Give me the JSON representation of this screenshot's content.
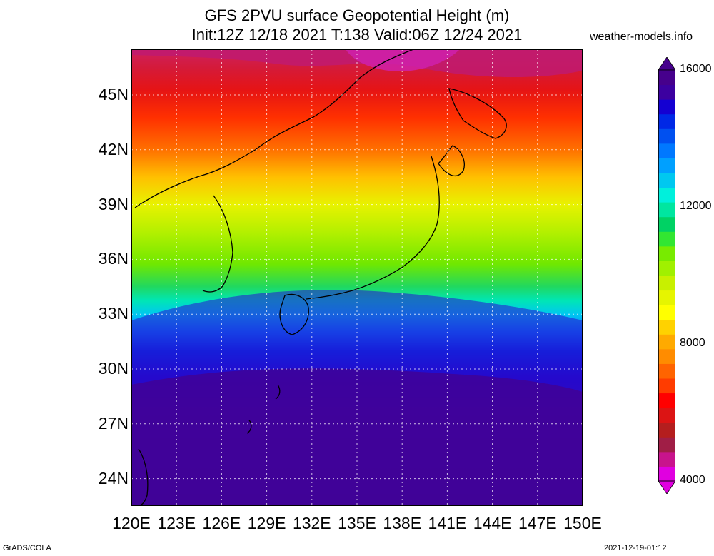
{
  "header": {
    "title_line1": "GFS 2PVU surface Geopotential Height (m)",
    "title_line2": "Init:12Z 12/18 2021 T:138 Valid:06Z 12/24 2021",
    "credit": "weather-models.info"
  },
  "map": {
    "lon_range": [
      120,
      150
    ],
    "lat_range": [
      22.5,
      47.5
    ],
    "lat_labels": [
      "45N",
      "42N",
      "39N",
      "36N",
      "33N",
      "30N",
      "27N",
      "24N"
    ],
    "lat_values": [
      45,
      42,
      39,
      36,
      33,
      30,
      27,
      24
    ],
    "lon_labels": [
      "120E",
      "123E",
      "126E",
      "129E",
      "132E",
      "135E",
      "138E",
      "141E",
      "144E",
      "147E",
      "150E"
    ],
    "lon_values": [
      120,
      123,
      126,
      129,
      132,
      135,
      138,
      141,
      144,
      147,
      150
    ],
    "grid_lines": "dotted"
  },
  "colorbar": {
    "labels": [
      "16000",
      "12000",
      "8000",
      "4000"
    ],
    "label_values": [
      16000,
      12000,
      8000,
      4000
    ],
    "range": [
      4000,
      16000
    ],
    "colors": [
      "#e000e0",
      "#c8148c",
      "#a01e46",
      "#b41e1e",
      "#dc1414",
      "#ff0000",
      "#ff3c00",
      "#ff6400",
      "#ff8c00",
      "#ffaa00",
      "#ffd200",
      "#ffff00",
      "#e6f500",
      "#c8f000",
      "#a0f000",
      "#78eb00",
      "#32e632",
      "#00d264",
      "#00e6a0",
      "#00f0dc",
      "#00c8f0",
      "#00a0ff",
      "#0078ff",
      "#0050f0",
      "#0028e6",
      "#1400d2",
      "#3c00a0",
      "#46008c"
    ]
  },
  "footer": {
    "left": "GrADS/COLA",
    "right": "2021-12-19-01:12"
  }
}
